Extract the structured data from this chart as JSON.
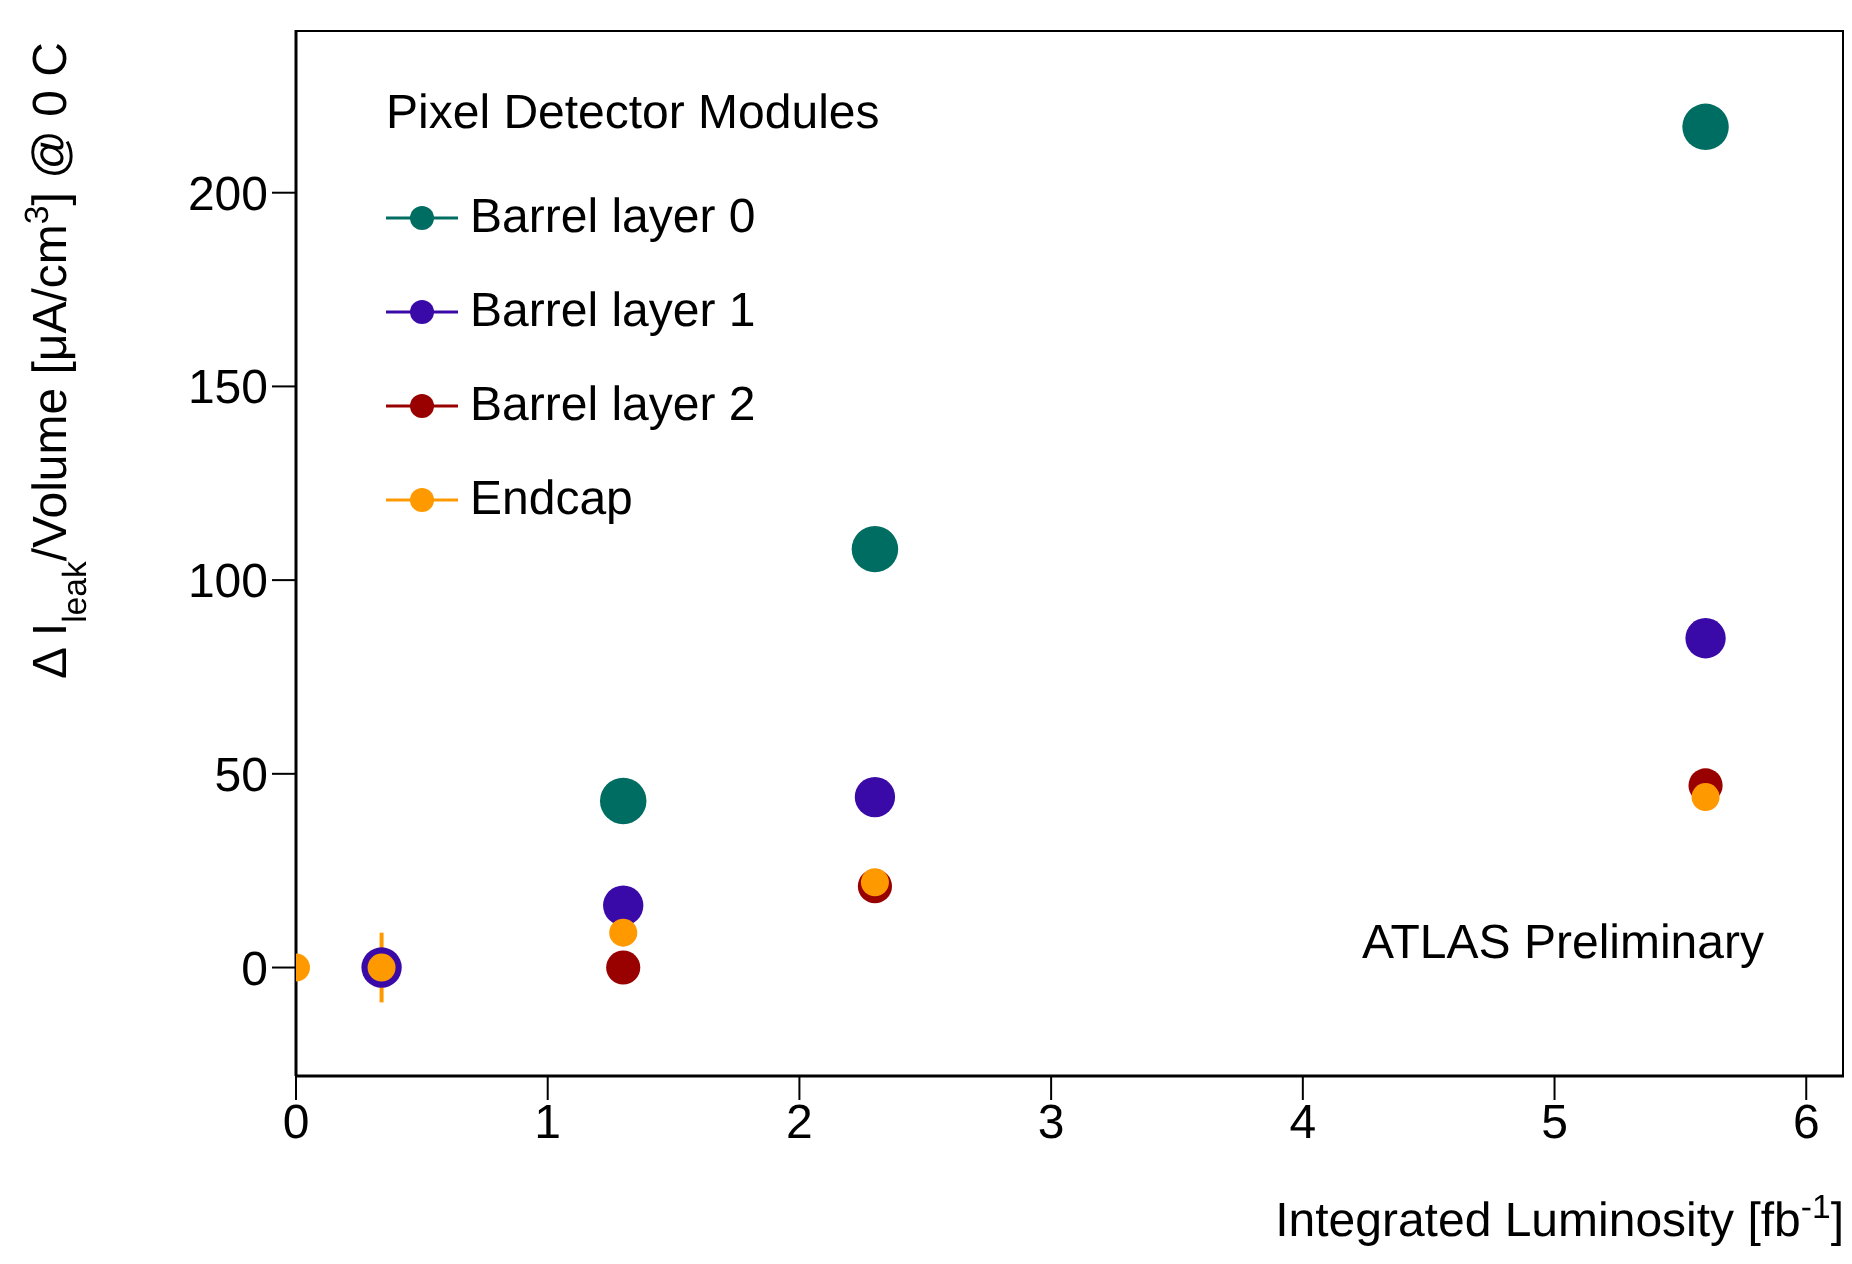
{
  "chart_data": {
    "type": "scatter",
    "xlabel": "Integrated Luminosity [fb$^{-1}$]",
    "ylabel": "Δ I$_{leak}$/Volume [μA/cm$^{3}$] @ 0 C",
    "legend_title": "Pixel Detector Modules",
    "annotations": [
      "ATLAS Preliminary"
    ],
    "x": [
      0,
      0.34,
      1.3,
      2.3,
      5.6
    ],
    "series": [
      {
        "name": "Barrel layer 0",
        "color": "#006d63",
        "values": [
          null,
          null,
          43,
          108,
          217
        ]
      },
      {
        "name": "Barrel layer 1",
        "color": "#3a0aa8",
        "values": [
          null,
          0,
          16,
          44,
          85
        ]
      },
      {
        "name": "Barrel layer 2",
        "color": "#990000",
        "values": [
          null,
          null,
          0,
          21,
          47
        ]
      },
      {
        "name": "Endcap",
        "color": "#ff9900",
        "values": [
          0,
          0,
          9,
          22,
          44
        ],
        "errors": [
          null,
          9,
          null,
          null,
          null
        ]
      }
    ],
    "xlim": [
      0,
      6.15
    ],
    "xticks": [
      0,
      1,
      2,
      3,
      4,
      5,
      6
    ],
    "ylim": [
      -28,
      242
    ],
    "yticks": [
      0,
      50,
      100,
      150,
      200
    ],
    "marker": "circle",
    "legend": "top left",
    "grid": false
  }
}
